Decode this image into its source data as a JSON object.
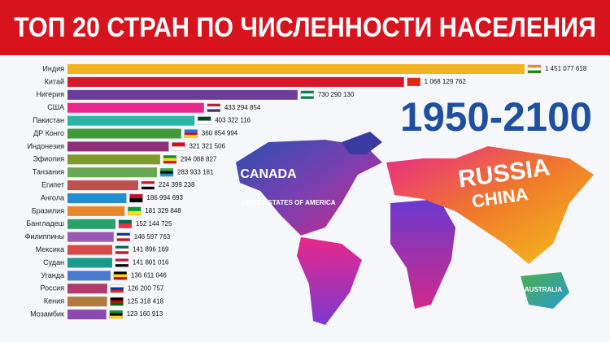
{
  "chart_data": {
    "type": "bar",
    "orientation": "horizontal",
    "title": "ТОП 20 СТРАН ПО ЧИСЛЕННОСТИ НАСЕЛЕНИЯ",
    "period": "1950-2100",
    "categories": [
      "Индия",
      "Китай",
      "Нигерия",
      "США",
      "Пакистан",
      "ДР Конго",
      "Индонезия",
      "Эфиопия",
      "Танзания",
      "Египет",
      "Ангола",
      "Бразилия",
      "Бангладеш",
      "Филиппины",
      "Мексика",
      "Судан",
      "Уганда",
      "Россия",
      "Кения",
      "Мозамбик"
    ],
    "values": [
      1451077618,
      1068129762,
      730290130,
      433294854,
      403322116,
      360854994,
      321321506,
      294088827,
      283933181,
      224399238,
      186994693,
      181329848,
      152144725,
      146597763,
      141896169,
      141801016,
      136611046,
      126200757,
      125318418,
      123160913
    ],
    "value_labels": [
      "1 451 077 618",
      "1 068 129 762",
      "730 290 130",
      "433 294 854",
      "403 322 116",
      "360 854 994",
      "321 321 506",
      "294 088 827",
      "283 933 181",
      "224 399 238",
      "186 994 693",
      "181 329 848",
      "152 144 725",
      "146 597 763",
      "141 896 169",
      "141 801 016",
      "136 611 046",
      "126 200 757",
      "125 318 418",
      "123 160 913"
    ],
    "colors": [
      "#f0b323",
      "#d7182a",
      "#6a3d9a",
      "#e8288a",
      "#2bb5a5",
      "#3f9a3a",
      "#8e2f7a",
      "#7d9a2a",
      "#6aa84f",
      "#c0504d",
      "#1f8fd0",
      "#e8862a",
      "#2aa06a",
      "#9b59b6",
      "#d94a4a",
      "#1a9a8a",
      "#4a7ad0",
      "#b03a6a",
      "#b07a3a",
      "#8a4ab0"
    ],
    "map_labels": [
      "CANADA",
      "UNITED STATES OF AMERICA",
      "RUSSIA",
      "CHINA",
      "AUSTRALIA"
    ]
  }
}
